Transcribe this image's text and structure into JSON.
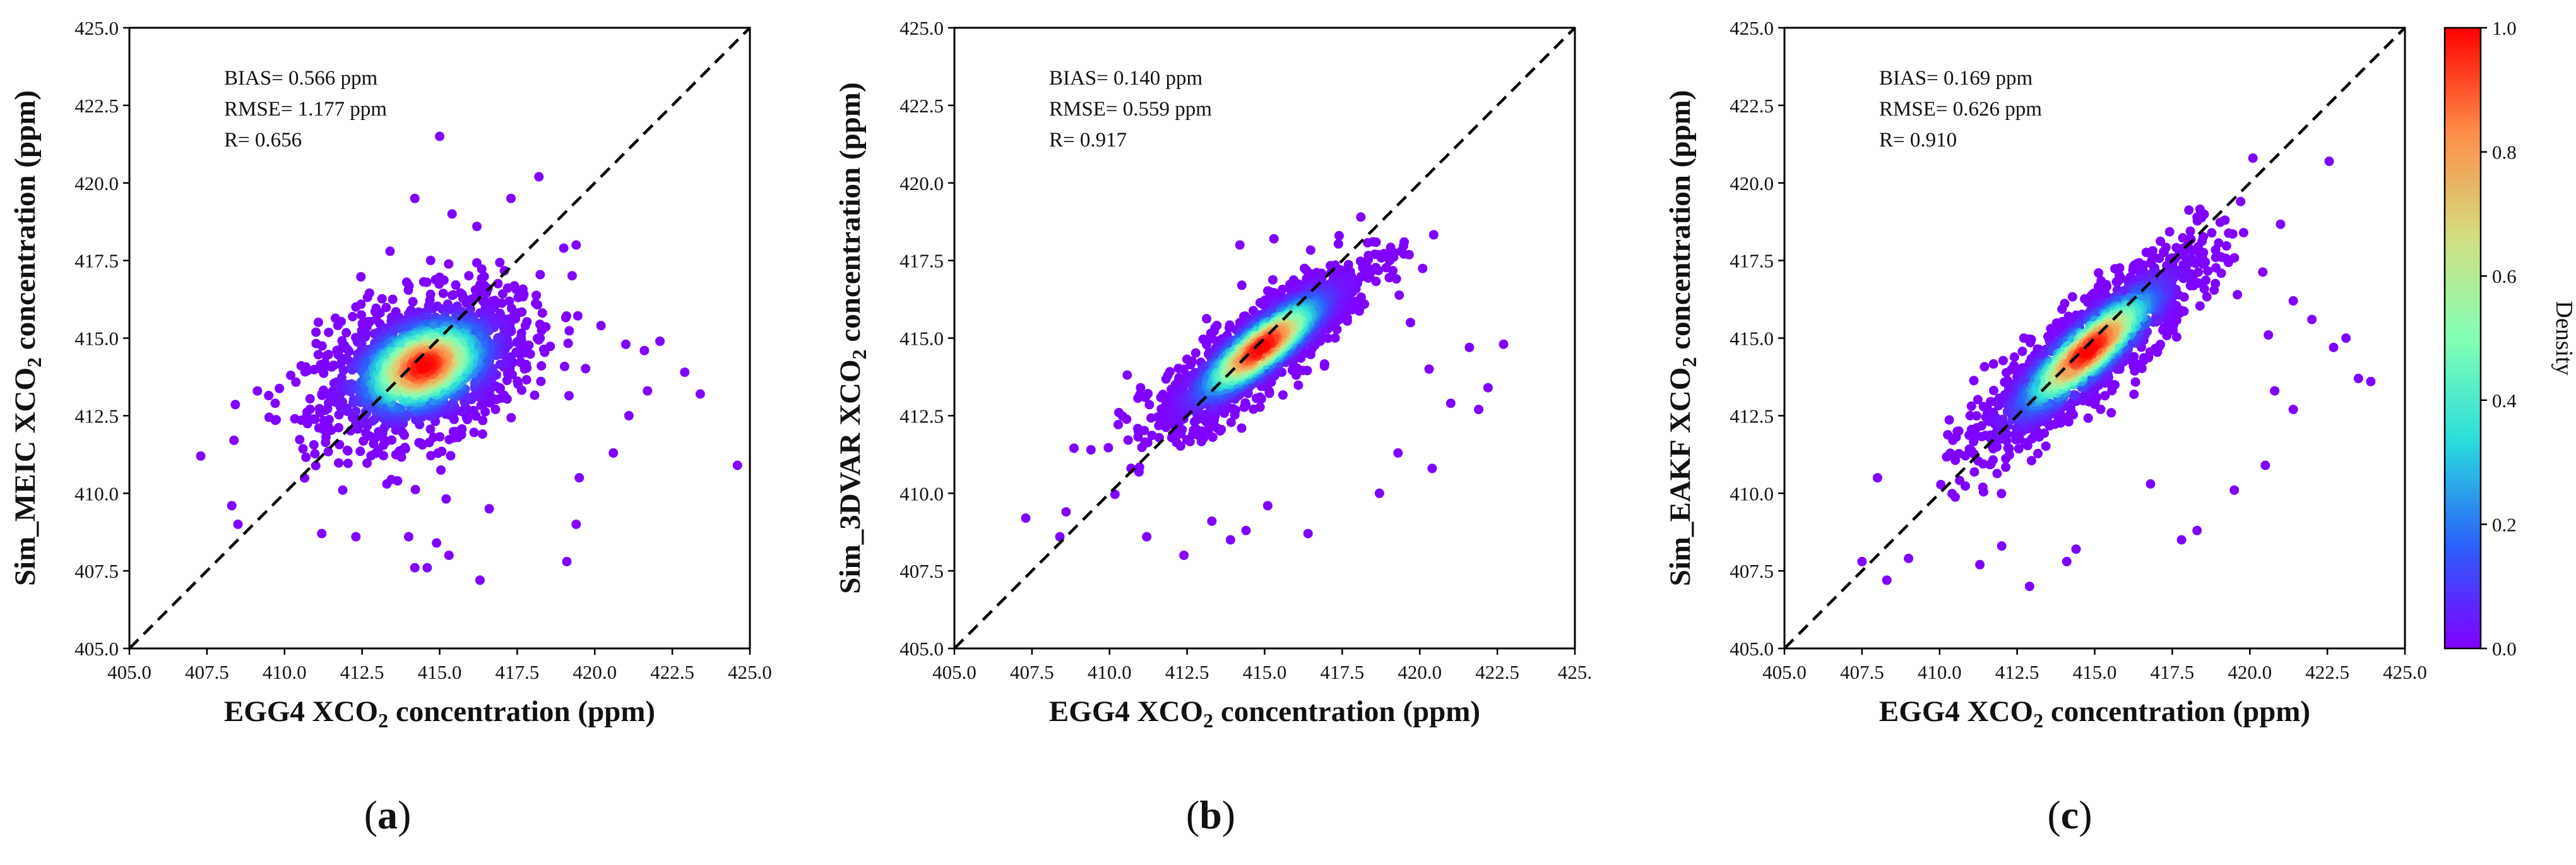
{
  "chart_data": [
    {
      "type": "scatter",
      "panel_label": "a",
      "title": "",
      "xlabel_parts": [
        "EGG4 XCO",
        "2",
        " concentration (ppm)"
      ],
      "ylabel_parts": [
        "Sim_MEIC XCO",
        "2",
        " concentration (ppm)"
      ],
      "xlim": [
        405.0,
        425.0
      ],
      "ylim": [
        405.0,
        425.0
      ],
      "xticks": [
        405.0,
        407.5,
        410.0,
        412.5,
        415.0,
        417.5,
        420.0,
        422.5,
        425.0
      ],
      "yticks": [
        405.0,
        407.5,
        410.0,
        412.5,
        415.0,
        417.5,
        420.0,
        422.5,
        425.0
      ],
      "xtick_labels": [
        "405.0",
        "407.5",
        "410.0",
        "412.5",
        "415.0",
        "417.5",
        "420.0",
        "422.5",
        "425.0"
      ],
      "ytick_labels": [
        "405.0",
        "407.5",
        "410.0",
        "412.5",
        "415.0",
        "417.5",
        "420.0",
        "422.5",
        "425.0"
      ],
      "annotations": [
        "BIAS= 0.566 ppm",
        "RMSE= 1.177 ppm",
        "R= 0.656"
      ],
      "one_to_one_line": true,
      "cloud": {
        "center": [
          414.5,
          414.1
        ],
        "spread_along": 1.75,
        "spread_across": 1.05,
        "slope": 0.42
      },
      "points": [
        [
          407.3,
          411.2
        ],
        [
          408.3,
          409.6
        ],
        [
          408.5,
          409.0
        ],
        [
          411.2,
          408.7
        ],
        [
          412.3,
          408.6
        ],
        [
          413.3,
          410.3
        ],
        [
          414.0,
          408.6
        ],
        [
          414.2,
          407.6
        ],
        [
          414.6,
          407.6
        ],
        [
          414.9,
          408.4
        ],
        [
          415.3,
          408.0
        ],
        [
          416.3,
          407.2
        ],
        [
          416.6,
          409.5
        ],
        [
          419.4,
          409.0
        ],
        [
          419.1,
          407.8
        ],
        [
          414.2,
          419.5
        ],
        [
          415.0,
          421.5
        ],
        [
          415.4,
          419.0
        ],
        [
          416.2,
          418.6
        ],
        [
          417.3,
          419.5
        ],
        [
          418.2,
          420.2
        ],
        [
          419.0,
          417.9
        ],
        [
          419.4,
          418.0
        ],
        [
          420.2,
          415.4
        ],
        [
          421.0,
          414.8
        ],
        [
          421.6,
          414.6
        ],
        [
          421.7,
          413.3
        ],
        [
          422.1,
          414.9
        ],
        [
          422.9,
          413.9
        ],
        [
          423.4,
          413.2
        ],
        [
          424.6,
          410.9
        ],
        [
          412.3,
          416.0
        ],
        [
          413.4,
          417.8
        ],
        [
          411.3,
          414.2
        ],
        [
          410.2,
          413.8
        ],
        [
          409.7,
          412.9
        ],
        [
          421.1,
          412.5
        ],
        [
          420.6,
          411.3
        ],
        [
          419.5,
          410.5
        ]
      ]
    },
    {
      "type": "scatter",
      "panel_label": "b",
      "title": "",
      "xlabel_parts": [
        "EGG4 XCO",
        "2",
        " concentration (ppm)"
      ],
      "ylabel_parts": [
        "Sim_3DVAR XCO",
        "2",
        " concentration (ppm)"
      ],
      "xlim": [
        405.0,
        425.0
      ],
      "ylim": [
        405.0,
        425.0
      ],
      "xticks": [
        405.0,
        407.5,
        410.0,
        412.5,
        415.0,
        417.5,
        420.0,
        422.5,
        425.0
      ],
      "yticks": [
        405.0,
        407.5,
        410.0,
        412.5,
        415.0,
        417.5,
        420.0,
        422.5,
        425.0
      ],
      "xtick_labels": [
        "405.0",
        "407.5",
        "410.0",
        "412.5",
        "415.0",
        "417.5",
        "420.0",
        "422.5",
        "425."
      ],
      "ytick_labels": [
        "405.0",
        "407.5",
        "410.0",
        "412.5",
        "415.0",
        "417.5",
        "420.0",
        "422.5",
        "425.0"
      ],
      "annotations": [
        "BIAS= 0.140 ppm",
        "RMSE= 0.559 ppm",
        "R= 0.917"
      ],
      "one_to_one_line": true,
      "cloud": {
        "center": [
          414.9,
          414.7
        ],
        "spread_along": 2.0,
        "spread_across": 0.55,
        "slope": 0.78
      },
      "points": [
        [
          407.3,
          409.2
        ],
        [
          408.4,
          408.6
        ],
        [
          408.6,
          409.4
        ],
        [
          411.2,
          408.6
        ],
        [
          412.4,
          408.0
        ],
        [
          413.3,
          409.1
        ],
        [
          413.9,
          408.5
        ],
        [
          414.4,
          408.8
        ],
        [
          415.1,
          409.6
        ],
        [
          416.4,
          408.7
        ],
        [
          415.3,
          418.2
        ],
        [
          414.2,
          418.0
        ],
        [
          416.6,
          416.2
        ],
        [
          417.4,
          418.3
        ],
        [
          418.1,
          418.9
        ],
        [
          419.4,
          417.8
        ],
        [
          419.7,
          415.5
        ],
        [
          420.3,
          414.0
        ],
        [
          421.0,
          412.9
        ],
        [
          421.6,
          414.7
        ],
        [
          422.2,
          413.4
        ],
        [
          422.7,
          414.8
        ],
        [
          421.9,
          412.7
        ],
        [
          419.3,
          411.3
        ],
        [
          420.4,
          410.8
        ],
        [
          418.7,
          410.0
        ],
        [
          410.3,
          412.6
        ],
        [
          409.4,
          411.4
        ],
        [
          411.0,
          413.4
        ]
      ]
    },
    {
      "type": "scatter",
      "panel_label": "c",
      "title": "",
      "xlabel_parts": [
        "EGG4 XCO",
        "2",
        " concentration (ppm)"
      ],
      "ylabel_parts": [
        "Sim_EAKF XCO",
        "2",
        " concentration (ppm)"
      ],
      "xlim": [
        405.0,
        425.0
      ],
      "ylim": [
        405.0,
        425.0
      ],
      "xticks": [
        405.0,
        407.5,
        410.0,
        412.5,
        415.0,
        417.5,
        420.0,
        422.5,
        425.0
      ],
      "yticks": [
        405.0,
        407.5,
        410.0,
        412.5,
        415.0,
        417.5,
        420.0,
        422.5,
        425.0
      ],
      "xtick_labels": [
        "405.0",
        "407.5",
        "410.0",
        "412.5",
        "415.0",
        "417.5",
        "420.0",
        "422.5",
        "425.0"
      ],
      "ytick_labels": [
        "405.0",
        "407.5",
        "410.0",
        "412.5",
        "415.0",
        "417.5",
        "420.0",
        "422.5",
        "425.0"
      ],
      "annotations": [
        "BIAS= 0.169 ppm",
        "RMSE= 0.626 ppm",
        "R= 0.910"
      ],
      "one_to_one_line": true,
      "cloud": {
        "center": [
          414.8,
          414.6
        ],
        "spread_along": 2.3,
        "spread_across": 0.6,
        "slope": 0.88
      },
      "points": [
        [
          407.5,
          407.8
        ],
        [
          408.0,
          410.5
        ],
        [
          408.3,
          407.2
        ],
        [
          409.0,
          407.9
        ],
        [
          411.3,
          407.7
        ],
        [
          412.0,
          408.3
        ],
        [
          412.9,
          407.0
        ],
        [
          414.1,
          407.8
        ],
        [
          414.4,
          408.2
        ],
        [
          417.8,
          408.5
        ],
        [
          420.1,
          420.8
        ],
        [
          419.2,
          418.8
        ],
        [
          418.3,
          418.9
        ],
        [
          418.9,
          417.6
        ],
        [
          419.6,
          416.4
        ],
        [
          420.6,
          415.1
        ],
        [
          421.4,
          416.2
        ],
        [
          422.0,
          415.6
        ],
        [
          422.7,
          414.7
        ],
        [
          423.1,
          415.0
        ],
        [
          423.5,
          413.7
        ],
        [
          423.9,
          413.6
        ],
        [
          420.8,
          413.3
        ],
        [
          421.4,
          412.7
        ],
        [
          420.5,
          410.9
        ],
        [
          419.5,
          410.1
        ],
        [
          418.3,
          408.8
        ],
        [
          416.8,
          410.3
        ]
      ]
    }
  ],
  "colorbar": {
    "label": "Density",
    "ticks": [
      0.0,
      0.2,
      0.4,
      0.6,
      0.8,
      1.0
    ],
    "tick_labels": [
      "0.0",
      "0.2",
      "0.4",
      "0.6",
      "0.8",
      "1.0"
    ],
    "range": [
      0.0,
      1.0
    ],
    "colormap": "rainbow",
    "colormap_stops": [
      "#8000ff",
      "#2a61fa",
      "#2adcdc",
      "#82ffb4",
      "#d4dc7f",
      "#ff8c47",
      "#ff0000"
    ]
  },
  "panel_labels": [
    {
      "open": "(",
      "letter": "a",
      "close": ")"
    },
    {
      "open": "(",
      "letter": "b",
      "close": ")"
    },
    {
      "open": "(",
      "letter": "c",
      "close": ")"
    }
  ]
}
